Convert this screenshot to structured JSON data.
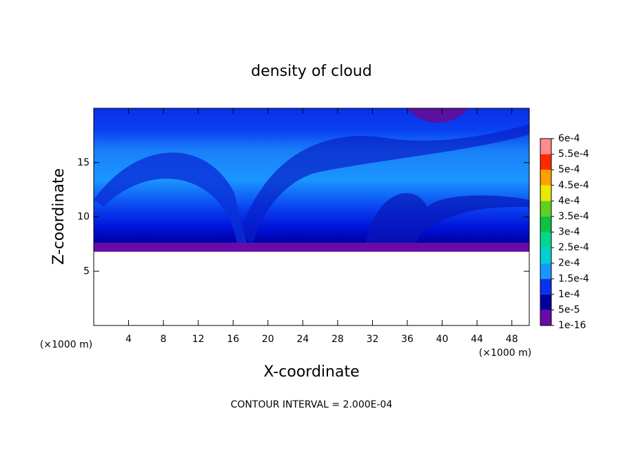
{
  "chart_data": {
    "type": "contour",
    "title": "density of cloud",
    "x_label": "X-coordinate",
    "y_label": "Z-coordinate",
    "x_unit": "(×1000 m)",
    "y_unit": "(×1000 m)",
    "footer": "CONTOUR INTERVAL = 2.000E-04",
    "xlim": [
      0,
      50
    ],
    "ylim": [
      0,
      20
    ],
    "xticks": [
      4,
      8,
      12,
      16,
      20,
      24,
      28,
      32,
      36,
      40,
      44,
      48
    ],
    "yticks": [
      5,
      10,
      15
    ],
    "colorbar": {
      "levels": [
        {
          "value": 1e-16,
          "label": "1e-16"
        },
        {
          "value": 5e-05,
          "label": "5e-5"
        },
        {
          "value": 0.0001,
          "label": "1e-4"
        },
        {
          "value": 0.00015,
          "label": "1.5e-4"
        },
        {
          "value": 0.0002,
          "label": "2e-4"
        },
        {
          "value": 0.00025,
          "label": "2.5e-4"
        },
        {
          "value": 0.0003,
          "label": "3e-4"
        },
        {
          "value": 0.00035,
          "label": "3.5e-4"
        },
        {
          "value": 0.0004,
          "label": "4e-4"
        },
        {
          "value": 0.00045,
          "label": "4.5e-4"
        },
        {
          "value": 0.0005,
          "label": "5e-4"
        },
        {
          "value": 0.00055,
          "label": "5.5e-4"
        },
        {
          "value": 0.0006,
          "label": "6e-4"
        }
      ],
      "colors": [
        "#6a0aa8",
        "#0000a0",
        "#0a30f0",
        "#1a96ff",
        "#00d0d0",
        "#00d890",
        "#10c040",
        "#60d020",
        "#e8e800",
        "#ffa000",
        "#ff2a00",
        "#ff8c8c"
      ]
    }
  }
}
